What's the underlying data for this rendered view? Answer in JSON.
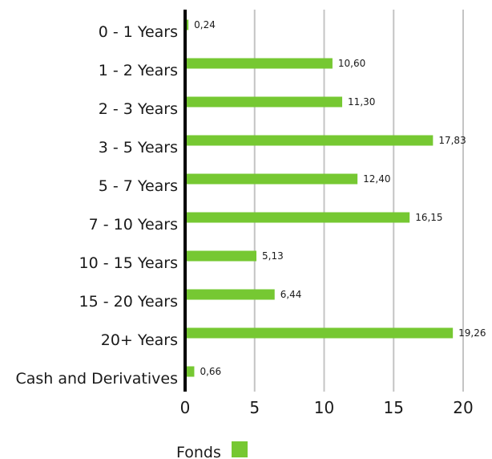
{
  "chart_data": {
    "type": "bar",
    "orientation": "horizontal",
    "categories": [
      "0 - 1 Years",
      "1 - 2 Years",
      "2 - 3 Years",
      "3 - 5 Years",
      "5 - 7 Years",
      "7 - 10 Years",
      "10 - 15 Years",
      "15 - 20 Years",
      "20+ Years",
      "Cash and Derivatives"
    ],
    "series": [
      {
        "name": "Fonds",
        "values": [
          0.24,
          10.6,
          11.3,
          17.83,
          12.4,
          16.15,
          5.13,
          6.44,
          19.26,
          0.66
        ],
        "value_labels": [
          "0,24",
          "10,60",
          "11,30",
          "17,83",
          "12,40",
          "16,15",
          "5,13",
          "6,44",
          "19,26",
          "0,66"
        ],
        "color": "#76c832"
      }
    ],
    "xlim": [
      0,
      22
    ],
    "xticks": [
      0,
      5,
      10,
      15,
      20
    ],
    "xtick_labels": [
      "0",
      "5",
      "10",
      "15",
      "20"
    ],
    "grid": true,
    "grid_color": "#c4c4c4",
    "axis_color": "#000000",
    "legend": {
      "position": "bottom",
      "label": "Fonds"
    }
  }
}
